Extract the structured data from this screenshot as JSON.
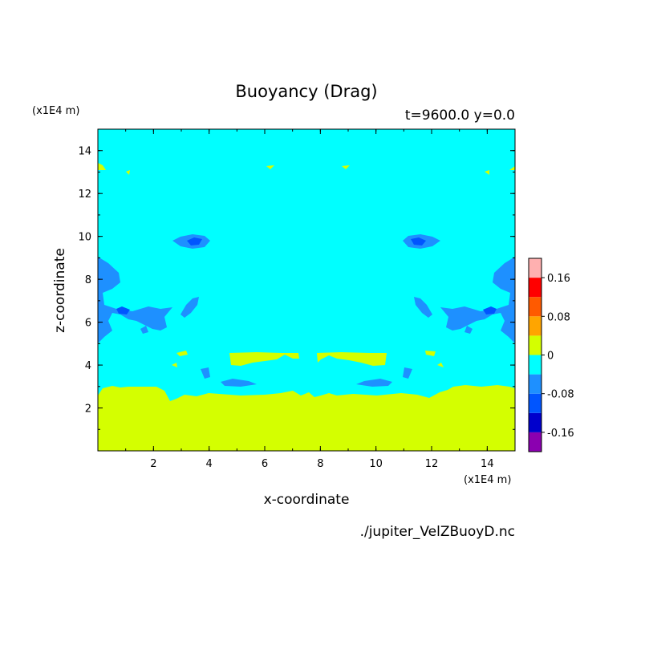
{
  "chart_data": {
    "type": "heatmap",
    "title": "Buoyancy (Drag)",
    "subtitle": "t=9600.0 y=0.0",
    "xlabel": "x-coordinate",
    "ylabel": "z-coordinate",
    "x_units": "(x1E4 m)",
    "y_units": "(x1E4 m)",
    "source_file": "./jupiter_VelZBuoyD.nc",
    "xlim": [
      0,
      15
    ],
    "ylim": [
      0,
      15
    ],
    "x_ticks": [
      "2",
      "4",
      "6",
      "8",
      "10",
      "12",
      "14"
    ],
    "y_ticks": [
      "2",
      "4",
      "6",
      "8",
      "10",
      "12",
      "14"
    ],
    "colorbar": {
      "levels": [
        -0.2,
        -0.16,
        -0.12,
        -0.08,
        -0.04,
        0,
        0.04,
        0.08,
        0.12,
        0.16,
        0.2
      ],
      "colors": [
        "#8b00b0",
        "#0000cc",
        "#0055ff",
        "#1e90ff",
        "#00ffff",
        "#d4ff00",
        "#ffa500",
        "#ff5a00",
        "#ff0000",
        "#ffb0b0"
      ],
      "labels": [
        "0.16",
        "0.08",
        "0",
        "-0.08",
        "-0.16"
      ]
    },
    "regions": [
      {
        "level": "0 to 0.04",
        "description": "z below ~3 (x1E4 m) across full x range, plus bands near z~4.3-4.5 around x=5-7 and x=8-11"
      },
      {
        "level": "-0.04 to 0",
        "description": "most of the domain above z~3"
      },
      {
        "level": "-0.08 to -0.04",
        "description": "blobs near (3.5,10), (11.5,10), (1,6.5), (14,6.5) and lateral edges z~5-9"
      },
      {
        "level": "-0.12 to -0.08",
        "description": "cores at (3.5,9.8), (11.5,9.8), (1,6.5), (14,6.5)"
      }
    ]
  }
}
